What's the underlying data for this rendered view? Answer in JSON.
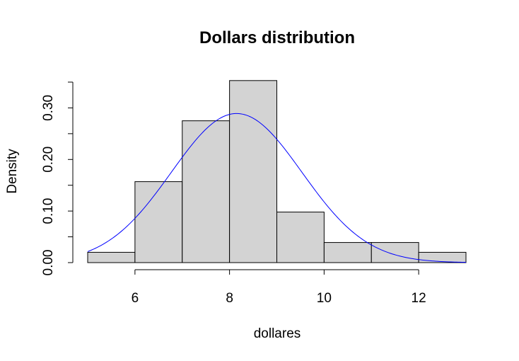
{
  "chart_data": {
    "type": "bar",
    "title": "Dollars distribution",
    "xlabel": "dollares",
    "ylabel": "Density",
    "xlim": [
      5,
      13
    ],
    "ylim": [
      0,
      0.35
    ],
    "x_ticks": [
      6,
      8,
      10,
      12
    ],
    "y_ticks": [
      0.0,
      0.05,
      0.1,
      0.15,
      0.2,
      0.25,
      0.3,
      0.35
    ],
    "y_tick_labels": [
      "0.00",
      "0.10",
      "0.20",
      "0.30"
    ],
    "y_labeled_values": [
      0.0,
      0.1,
      0.2,
      0.3
    ],
    "bins": [
      {
        "x0": 5,
        "x1": 6,
        "density": 0.02
      },
      {
        "x0": 6,
        "x1": 7,
        "density": 0.157
      },
      {
        "x0": 7,
        "x1": 8,
        "density": 0.275
      },
      {
        "x0": 8,
        "x1": 9,
        "density": 0.353
      },
      {
        "x0": 9,
        "x1": 10,
        "density": 0.098
      },
      {
        "x0": 10,
        "x1": 11,
        "density": 0.039
      },
      {
        "x0": 11,
        "x1": 12,
        "density": 0.039
      },
      {
        "x0": 12,
        "x1": 13,
        "density": 0.02
      }
    ],
    "bar_color": "#d3d3d3",
    "curve": {
      "type": "normal-density",
      "mean": 8.15,
      "sd": 1.38,
      "x_range": [
        5,
        13
      ],
      "color": "#0000ff"
    },
    "grid": false,
    "legend": "none"
  }
}
